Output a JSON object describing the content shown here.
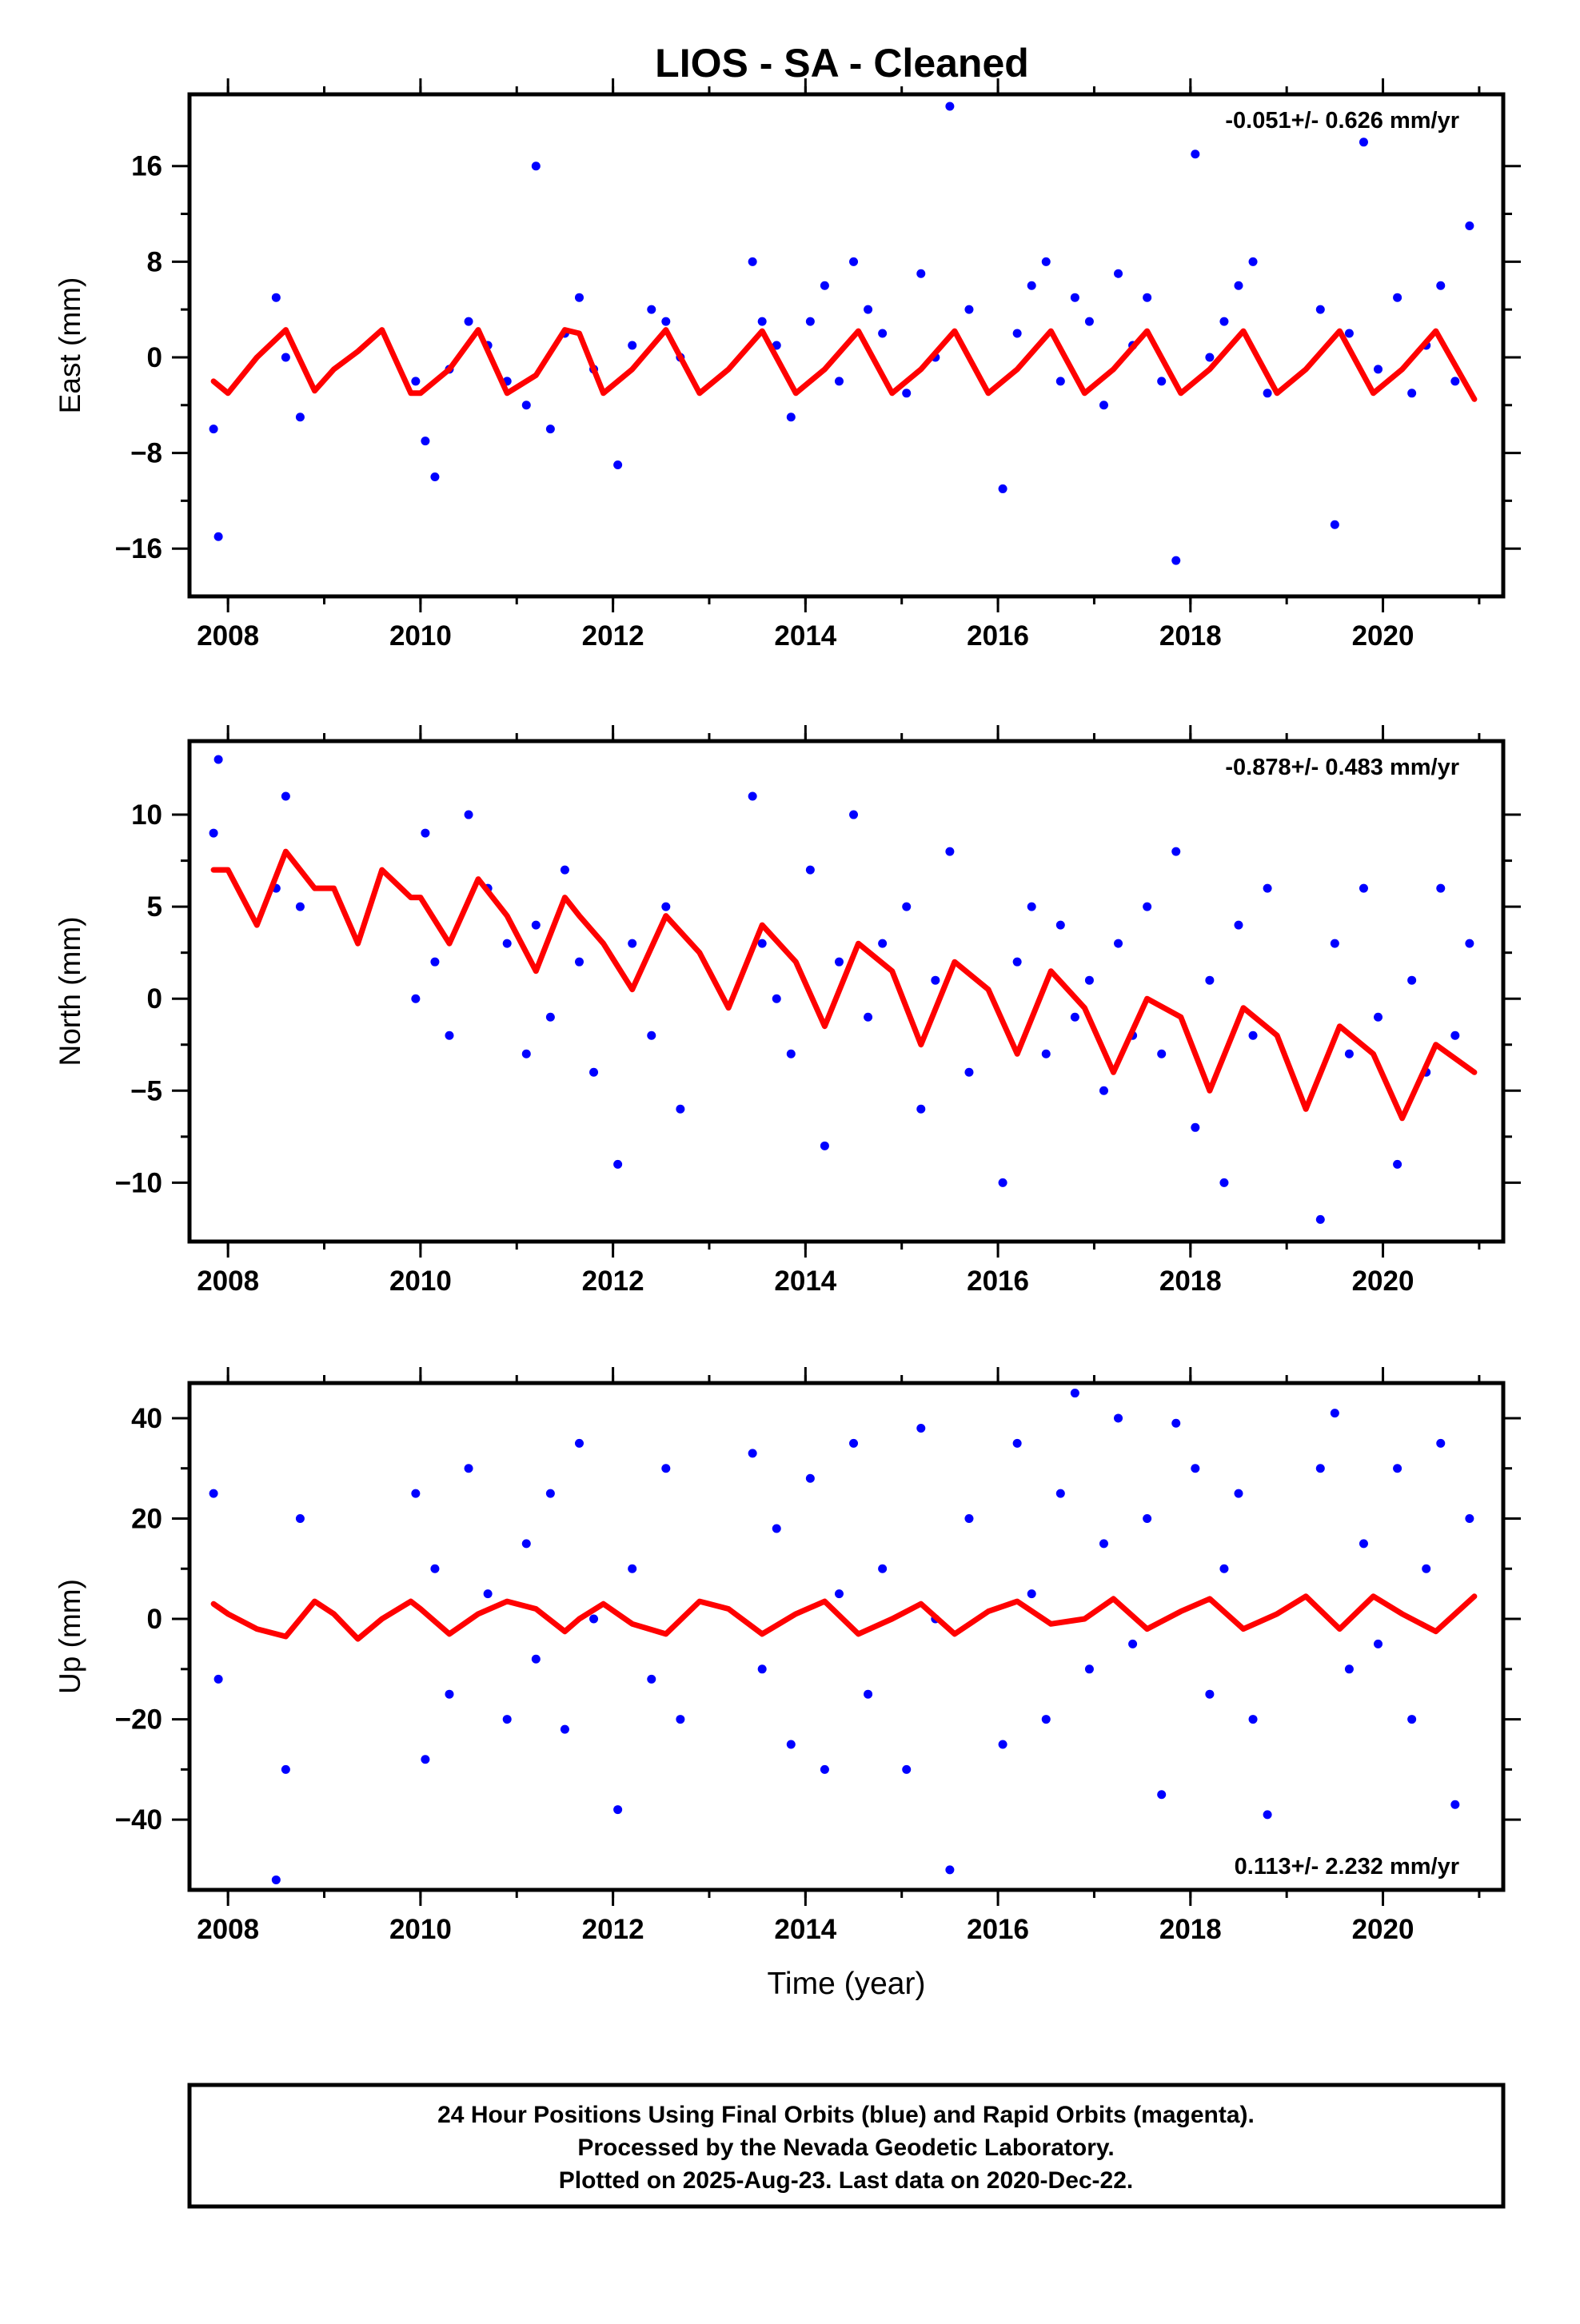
{
  "title": "LIOS  - SA - Cleaned",
  "colors": {
    "points": "#0000ff",
    "fit": "#ff0000",
    "frame": "#000000"
  },
  "footer": {
    "line1": "24 Hour Positions Using Final Orbits (blue) and Rapid Orbits (magenta).",
    "line2": "Processed by the Nevada Geodetic Laboratory.",
    "line3": "Plotted on 2025-Aug-23. Last data on 2020-Dec-22."
  },
  "chart_data": [
    {
      "type": "scatter",
      "title": "LIOS  - SA - Cleaned",
      "ylabel": "East (mm)",
      "xlabel": "",
      "rate": "-0.051+/- 0.626 mm/yr",
      "rate_position": "top-right",
      "xlim": [
        2007.6,
        2021.25
      ],
      "ylim": [
        -20,
        22
      ],
      "xticks": [
        2008,
        2010,
        2012,
        2014,
        2016,
        2018,
        2020
      ],
      "yticks": [
        16,
        8,
        0,
        -8,
        -16
      ],
      "ytick_labels": [
        "16",
        "8",
        "0",
        "−8",
        "−16"
      ],
      "grid": false,
      "series": [
        {
          "x": [
            2007.85,
            2007.9,
            2008.5,
            2008.6,
            2008.75,
            2009.95,
            2010.05,
            2010.15,
            2010.3,
            2010.5,
            2010.7,
            2010.9,
            2011.1,
            2011.2,
            2011.35,
            2011.5,
            2011.65,
            2011.8,
            2012.05,
            2012.2,
            2012.4,
            2012.55,
            2012.7,
            2013.45,
            2013.55,
            2013.7,
            2013.85,
            2014.05,
            2014.2,
            2014.35,
            2014.5,
            2014.65,
            2014.8,
            2015.05,
            2015.2,
            2015.35,
            2015.5,
            2015.7,
            2016.05,
            2016.2,
            2016.35,
            2016.5,
            2016.65,
            2016.8,
            2016.95,
            2017.1,
            2017.25,
            2017.4,
            2017.55,
            2017.7,
            2017.85,
            2018.05,
            2018.2,
            2018.35,
            2018.5,
            2018.65,
            2018.8,
            2019.35,
            2019.5,
            2019.65,
            2019.8,
            2019.95,
            2020.15,
            2020.3,
            2020.45,
            2020.6,
            2020.75,
            2020.9
          ],
          "y": [
            -6,
            -15,
            5,
            0,
            -5,
            -2,
            -7,
            -10,
            -1,
            3,
            1,
            -2,
            -4,
            16,
            -6,
            2,
            5,
            -1,
            -9,
            1,
            4,
            3,
            0,
            8,
            3,
            1,
            -5,
            3,
            6,
            -2,
            8,
            4,
            2,
            -3,
            7,
            0,
            21,
            4,
            -11,
            2,
            6,
            8,
            -2,
            5,
            3,
            -4,
            7,
            1,
            5,
            -2,
            -17,
            17,
            0,
            3,
            6,
            8,
            -3,
            4,
            -14,
            2,
            18,
            -1,
            5,
            -3,
            1,
            6,
            -2,
            11
          ]
        },
        {
          "name": "",
          "x": [
            2007.85,
            2008.0,
            2008.3,
            2008.6,
            2008.9,
            2009.1,
            2009.35,
            2009.6,
            2009.9,
            2010.0,
            2010.3,
            2010.6,
            2010.9,
            2011.2,
            2011.5,
            2011.65,
            2011.9,
            2012.2,
            2012.55,
            2012.9,
            2013.2,
            2013.55,
            2013.9,
            2014.2,
            2014.55,
            2014.9,
            2015.2,
            2015.55,
            2015.9,
            2016.2,
            2016.55,
            2016.9,
            2017.2,
            2017.55,
            2017.9,
            2018.2,
            2018.55,
            2018.9,
            2019.2,
            2019.55,
            2019.9,
            2020.2,
            2020.55,
            2020.95
          ],
          "y": [
            -2,
            -3,
            0,
            2.3,
            -2.8,
            -1,
            0.5,
            2.3,
            -3,
            -3,
            -1,
            2.3,
            -3,
            -1.5,
            2.3,
            2,
            -3,
            -1,
            2.3,
            -3,
            -1,
            2.2,
            -3,
            -1,
            2.2,
            -3,
            -1,
            2.2,
            -3,
            -1,
            2.2,
            -3,
            -1,
            2.2,
            -3,
            -1,
            2.2,
            -3,
            -1,
            2.2,
            -3,
            -1,
            2.2,
            -3.5
          ]
        }
      ]
    },
    {
      "type": "scatter",
      "ylabel": "North (mm)",
      "xlabel": "",
      "rate": "-0.878+/- 0.483 mm/yr",
      "rate_position": "top-right",
      "xlim": [
        2007.6,
        2021.25
      ],
      "ylim": [
        -13.2,
        14
      ],
      "xticks": [
        2008,
        2010,
        2012,
        2014,
        2016,
        2018,
        2020
      ],
      "yticks": [
        10,
        5,
        0,
        -5,
        -10
      ],
      "ytick_labels": [
        "10",
        "5",
        "0",
        "−5",
        "−10"
      ],
      "grid": false,
      "series": [
        {
          "x": [
            2007.85,
            2007.9,
            2008.5,
            2008.6,
            2008.75,
            2009.95,
            2010.05,
            2010.15,
            2010.3,
            2010.5,
            2010.7,
            2010.9,
            2011.1,
            2011.2,
            2011.35,
            2011.5,
            2011.65,
            2011.8,
            2012.05,
            2012.2,
            2012.4,
            2012.55,
            2012.7,
            2013.45,
            2013.55,
            2013.7,
            2013.85,
            2014.05,
            2014.2,
            2014.35,
            2014.5,
            2014.65,
            2014.8,
            2015.05,
            2015.2,
            2015.35,
            2015.5,
            2015.7,
            2016.05,
            2016.2,
            2016.35,
            2016.5,
            2016.65,
            2016.8,
            2016.95,
            2017.1,
            2017.25,
            2017.4,
            2017.55,
            2017.7,
            2017.85,
            2018.05,
            2018.2,
            2018.35,
            2018.5,
            2018.65,
            2018.8,
            2019.35,
            2019.5,
            2019.65,
            2019.8,
            2019.95,
            2020.15,
            2020.3,
            2020.45,
            2020.6,
            2020.75,
            2020.9
          ],
          "y": [
            9,
            13,
            6,
            11,
            5,
            0,
            9,
            2,
            -2,
            10,
            6,
            3,
            -3,
            4,
            -1,
            7,
            2,
            -4,
            -9,
            3,
            -2,
            5,
            -6,
            11,
            3,
            0,
            -3,
            7,
            -8,
            2,
            10,
            -1,
            3,
            5,
            -6,
            1,
            8,
            -4,
            -10,
            2,
            5,
            -3,
            4,
            -1,
            1,
            -5,
            3,
            -2,
            5,
            -3,
            8,
            -7,
            1,
            -10,
            4,
            -2,
            6,
            -12,
            3,
            -3,
            6,
            -1,
            -9,
            1,
            -4,
            6,
            -2,
            3
          ]
        },
        {
          "name": "",
          "x": [
            2007.85,
            2008.0,
            2008.3,
            2008.6,
            2008.9,
            2009.1,
            2009.35,
            2009.6,
            2009.9,
            2010.0,
            2010.3,
            2010.6,
            2010.9,
            2011.2,
            2011.5,
            2011.65,
            2011.9,
            2012.2,
            2012.55,
            2012.9,
            2013.2,
            2013.55,
            2013.9,
            2014.2,
            2014.55,
            2014.9,
            2015.2,
            2015.55,
            2015.9,
            2016.2,
            2016.55,
            2016.9,
            2017.2,
            2017.55,
            2017.9,
            2018.2,
            2018.55,
            2018.9,
            2019.2,
            2019.55,
            2019.9,
            2020.2,
            2020.55,
            2020.95
          ],
          "y": [
            7,
            7,
            4,
            8,
            6,
            6,
            3,
            7,
            5.5,
            5.5,
            3,
            6.5,
            4.5,
            1.5,
            5.5,
            4.5,
            3,
            0.5,
            4.5,
            2.5,
            -0.5,
            4,
            2,
            -1.5,
            3,
            1.5,
            -2.5,
            2,
            0.5,
            -3,
            1.5,
            -0.5,
            -4,
            0,
            -1,
            -5,
            -0.5,
            -2,
            -6,
            -1.5,
            -3,
            -6.5,
            -2.5,
            -4
          ]
        }
      ]
    },
    {
      "type": "scatter",
      "ylabel": "Up (mm)",
      "xlabel": "Time (year)",
      "rate": "0.113+/- 2.232 mm/yr",
      "rate_position": "bottom-right",
      "xlim": [
        2007.6,
        2021.25
      ],
      "ylim": [
        -54,
        47
      ],
      "xticks": [
        2008,
        2010,
        2012,
        2014,
        2016,
        2018,
        2020
      ],
      "yticks": [
        40,
        20,
        0,
        -20,
        -40
      ],
      "ytick_labels": [
        "40",
        "20",
        "0",
        "−20",
        "−40"
      ],
      "grid": false,
      "series": [
        {
          "x": [
            2007.85,
            2007.9,
            2008.5,
            2008.6,
            2008.75,
            2009.95,
            2010.05,
            2010.15,
            2010.3,
            2010.5,
            2010.7,
            2010.9,
            2011.1,
            2011.2,
            2011.35,
            2011.5,
            2011.65,
            2011.8,
            2012.05,
            2012.2,
            2012.4,
            2012.55,
            2012.7,
            2013.45,
            2013.55,
            2013.7,
            2013.85,
            2014.05,
            2014.2,
            2014.35,
            2014.5,
            2014.65,
            2014.8,
            2015.05,
            2015.2,
            2015.35,
            2015.5,
            2015.7,
            2016.05,
            2016.2,
            2016.35,
            2016.5,
            2016.65,
            2016.8,
            2016.95,
            2017.1,
            2017.25,
            2017.4,
            2017.55,
            2017.7,
            2017.85,
            2018.05,
            2018.2,
            2018.35,
            2018.5,
            2018.65,
            2018.8,
            2019.35,
            2019.5,
            2019.65,
            2019.8,
            2019.95,
            2020.15,
            2020.3,
            2020.45,
            2020.6,
            2020.75,
            2020.9
          ],
          "y": [
            25,
            -12,
            -52,
            -30,
            20,
            25,
            -28,
            10,
            -15,
            30,
            5,
            -20,
            15,
            -8,
            25,
            -22,
            35,
            0,
            -38,
            10,
            -12,
            30,
            -20,
            33,
            -10,
            18,
            -25,
            28,
            -30,
            5,
            35,
            -15,
            10,
            -30,
            38,
            0,
            -50,
            20,
            -25,
            35,
            5,
            -20,
            25,
            45,
            -10,
            15,
            40,
            -5,
            20,
            -35,
            39,
            30,
            -15,
            10,
            25,
            -20,
            -39,
            30,
            41,
            -10,
            15,
            -5,
            30,
            -20,
            10,
            35,
            -37,
            20
          ]
        },
        {
          "name": "",
          "x": [
            2007.85,
            2008.0,
            2008.3,
            2008.6,
            2008.9,
            2009.1,
            2009.35,
            2009.6,
            2009.9,
            2010.0,
            2010.3,
            2010.6,
            2010.9,
            2011.2,
            2011.5,
            2011.65,
            2011.9,
            2012.2,
            2012.55,
            2012.9,
            2013.2,
            2013.55,
            2013.9,
            2014.2,
            2014.55,
            2014.9,
            2015.2,
            2015.55,
            2015.9,
            2016.2,
            2016.55,
            2016.9,
            2017.2,
            2017.55,
            2017.9,
            2018.2,
            2018.55,
            2018.9,
            2019.2,
            2019.55,
            2019.9,
            2020.2,
            2020.55,
            2020.95
          ],
          "y": [
            3,
            1,
            -2,
            -3.5,
            3.5,
            1,
            -4,
            0,
            3.5,
            2,
            -3,
            1,
            3.5,
            2,
            -2.5,
            0,
            3,
            -1,
            -3,
            3.5,
            2,
            -3,
            1,
            3.5,
            -3,
            0,
            3,
            -3,
            1.5,
            3.5,
            -1,
            0,
            4,
            -2,
            1.5,
            4,
            -2,
            1,
            4.5,
            -2,
            4.5,
            1,
            -2.5,
            4.5
          ]
        }
      ]
    }
  ]
}
